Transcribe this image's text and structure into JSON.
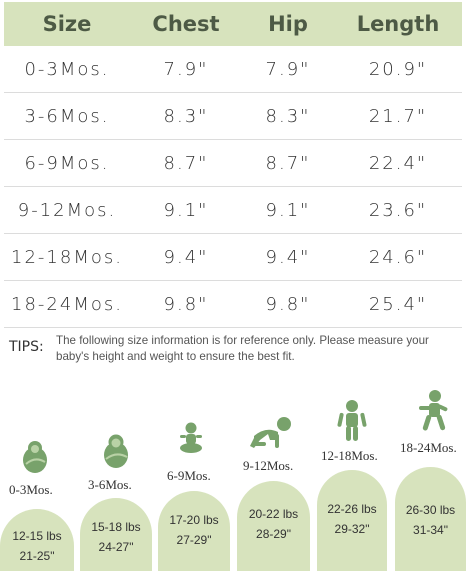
{
  "table": {
    "headers": [
      "Size",
      "Chest",
      "Hip",
      "Length"
    ],
    "rows": [
      [
        "0-3Mos.",
        "7.9\"",
        "7.9\"",
        "20.9\""
      ],
      [
        "3-6Mos.",
        "8.3\"",
        "8.3\"",
        "21.7\""
      ],
      [
        "6-9Mos.",
        "8.7\"",
        "8.7\"",
        "22.4\""
      ],
      [
        "9-12Mos.",
        "9.1\"",
        "9.1\"",
        "23.6\""
      ],
      [
        "12-18Mos.",
        "9.4\"",
        "9.4\"",
        "24.6\""
      ],
      [
        "18-24Mos.",
        "9.8\"",
        "9.8\"",
        "25.4\""
      ]
    ]
  },
  "tips": {
    "label": "TIPS:",
    "text": "The following size information is for reference only. Please measure your baby's height and weight to ensure the best fit."
  },
  "stages": [
    {
      "age": "0-3Mos.",
      "weight": "12-15 lbs",
      "height": "21-25\"",
      "icon": "swaddled-baby-icon"
    },
    {
      "age": "3-6Mos.",
      "weight": "15-18 lbs",
      "height": "24-27\"",
      "icon": "swaddled-baby-icon"
    },
    {
      "age": "6-9Mos.",
      "weight": "17-20 lbs",
      "height": "27-29\"",
      "icon": "sitting-baby-icon"
    },
    {
      "age": "9-12Mos.",
      "weight": "20-22 lbs",
      "height": "28-29\"",
      "icon": "crawling-baby-icon"
    },
    {
      "age": "12-18Mos.",
      "weight": "22-26 lbs",
      "height": "29-32\"",
      "icon": "standing-toddler-icon"
    },
    {
      "age": "18-24Mos.",
      "weight": "26-30 lbs",
      "height": "31-34\"",
      "icon": "walking-toddler-icon"
    }
  ],
  "colors": {
    "header_bg": "#d7e3bd",
    "icon_green": "#78a26b",
    "header_text": "#4d5a45"
  }
}
